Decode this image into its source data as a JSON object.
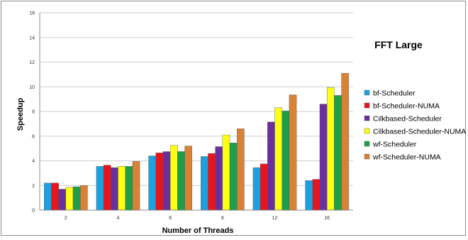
{
  "chart_data": {
    "type": "bar",
    "title": "FFT Large",
    "xlabel": "Number of Threads",
    "ylabel": "Speedup",
    "ylim": [
      0,
      16
    ],
    "yticks": [
      "0",
      "2",
      "4",
      "6",
      "8",
      "10",
      "12",
      "14",
      "16"
    ],
    "grid": true,
    "legend_position": "right",
    "categories": [
      "2",
      "4",
      "6",
      "8",
      "12",
      "16"
    ],
    "series": [
      {
        "name": "bf-Scheduler",
        "color": "#1ba1e2",
        "values": [
          2.2,
          3.55,
          4.4,
          4.35,
          3.45,
          2.4
        ]
      },
      {
        "name": "bf-Scheduler-NUMA",
        "color": "#e8141b",
        "values": [
          2.2,
          3.65,
          4.65,
          4.6,
          3.75,
          2.5
        ]
      },
      {
        "name": "Cilkbased-Scheduler",
        "color": "#6a2f9e",
        "values": [
          1.7,
          3.45,
          4.75,
          5.15,
          7.15,
          8.6
        ]
      },
      {
        "name": "Cilkbased-Scheduler-NUMA",
        "color": "#ffff14",
        "values": [
          1.85,
          3.55,
          5.25,
          6.1,
          8.3,
          9.95
        ]
      },
      {
        "name": "wf-Scheduler",
        "color": "#1e9e49",
        "values": [
          1.9,
          3.55,
          4.75,
          5.45,
          8.05,
          9.3
        ]
      },
      {
        "name": "wf-Scheduler-NUMA",
        "color": "#d98236",
        "values": [
          2.0,
          3.95,
          5.2,
          6.6,
          9.35,
          11.1
        ]
      }
    ]
  }
}
